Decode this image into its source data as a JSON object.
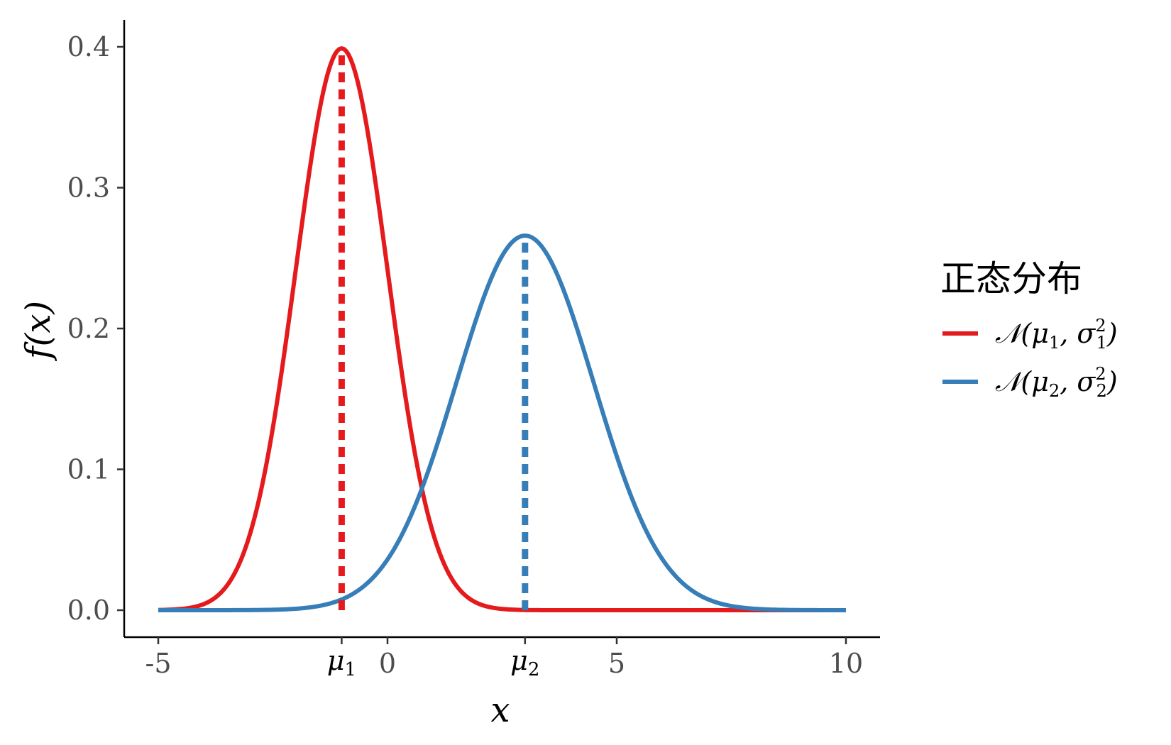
{
  "chart_data": {
    "type": "line",
    "title": "",
    "xlabel": "x",
    "ylabel": "f(x)",
    "xlim": [
      -5,
      10
    ],
    "ylim": [
      0,
      0.4
    ],
    "x_ticks": [
      "-5",
      "0",
      "5",
      "10"
    ],
    "y_ticks": [
      "0.0",
      "0.1",
      "0.2",
      "0.3",
      "0.4"
    ],
    "extra_x_ticks": [
      {
        "label": "μ",
        "sub": "1",
        "value": -1
      },
      {
        "label": "μ",
        "sub": "2",
        "value": 3
      }
    ],
    "grid": false,
    "legend_position": "right",
    "legend_title": "正态分布",
    "series": [
      {
        "name": "𝒩(μ₁, σ₁²)",
        "legend_parts": {
          "sym": "𝒩(μ",
          "sub": "1",
          "mid": ", σ",
          "sup": "2",
          "sub2": "1",
          "end": ")"
        },
        "distribution": "normal",
        "mean": -1,
        "sd": 1,
        "color": "#e41a1c"
      },
      {
        "name": "𝒩(μ₂, σ₂²)",
        "legend_parts": {
          "sym": "𝒩(μ",
          "sub": "2",
          "mid": ", σ",
          "sup": "2",
          "sub2": "2",
          "end": ")"
        },
        "distribution": "normal",
        "mean": 3,
        "sd": 1.5,
        "color": "#377eb8"
      }
    ],
    "mean_lines": [
      {
        "x": -1,
        "y": 0.399,
        "color": "#e41a1c",
        "style": "dashed"
      },
      {
        "x": 3,
        "y": 0.266,
        "color": "#377eb8",
        "style": "dashed"
      }
    ]
  }
}
